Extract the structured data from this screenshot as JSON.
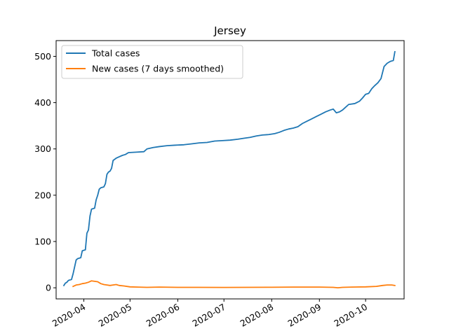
{
  "chart_data": {
    "type": "line",
    "title": "Jersey",
    "xlabel": "",
    "ylabel": "",
    "xlim": [
      "2020-03-14",
      "2020-10-26"
    ],
    "ylim": [
      -24,
      534
    ],
    "x_ticks": [
      "2020-04-01",
      "2020-05-01",
      "2020-06-01",
      "2020-07-01",
      "2020-08-01",
      "2020-09-01",
      "2020-10-01"
    ],
    "x_tick_labels": [
      "2020-04",
      "2020-05",
      "2020-06",
      "2020-07",
      "2020-08",
      "2020-09",
      "2020-10"
    ],
    "y_ticks": [
      0,
      100,
      200,
      300,
      400,
      500
    ],
    "y_tick_labels": [
      "0",
      "100",
      "200",
      "300",
      "400",
      "500"
    ],
    "legend": {
      "position": "upper-left"
    },
    "grid": false,
    "series": [
      {
        "name": "Total cases",
        "color": "#1f77b4",
        "points": [
          [
            "2020-03-19",
            5
          ],
          [
            "2020-03-20",
            10
          ],
          [
            "2020-03-21",
            12
          ],
          [
            "2020-03-22",
            16
          ],
          [
            "2020-03-24",
            18
          ],
          [
            "2020-03-25",
            30
          ],
          [
            "2020-03-26",
            45
          ],
          [
            "2020-03-27",
            60
          ],
          [
            "2020-03-28",
            63
          ],
          [
            "2020-03-30",
            65
          ],
          [
            "2020-03-31",
            80
          ],
          [
            "2020-04-02",
            82
          ],
          [
            "2020-04-03",
            118
          ],
          [
            "2020-04-04",
            125
          ],
          [
            "2020-04-05",
            155
          ],
          [
            "2020-04-06",
            170
          ],
          [
            "2020-04-08",
            172
          ],
          [
            "2020-04-09",
            190
          ],
          [
            "2020-04-10",
            200
          ],
          [
            "2020-04-11",
            213
          ],
          [
            "2020-04-12",
            216
          ],
          [
            "2020-04-14",
            218
          ],
          [
            "2020-04-15",
            225
          ],
          [
            "2020-04-16",
            245
          ],
          [
            "2020-04-17",
            250
          ],
          [
            "2020-04-18",
            252
          ],
          [
            "2020-04-19",
            258
          ],
          [
            "2020-04-20",
            275
          ],
          [
            "2020-04-22",
            280
          ],
          [
            "2020-04-24",
            283
          ],
          [
            "2020-04-26",
            286
          ],
          [
            "2020-04-28",
            288
          ],
          [
            "2020-04-30",
            292
          ],
          [
            "2020-05-05",
            293
          ],
          [
            "2020-05-10",
            294
          ],
          [
            "2020-05-12",
            300
          ],
          [
            "2020-05-16",
            303
          ],
          [
            "2020-05-20",
            305
          ],
          [
            "2020-05-25",
            307
          ],
          [
            "2020-05-30",
            308
          ],
          [
            "2020-06-05",
            309
          ],
          [
            "2020-06-10",
            311
          ],
          [
            "2020-06-15",
            313
          ],
          [
            "2020-06-20",
            314
          ],
          [
            "2020-06-25",
            317
          ],
          [
            "2020-06-30",
            318
          ],
          [
            "2020-07-05",
            319
          ],
          [
            "2020-07-10",
            321
          ],
          [
            "2020-07-14",
            323
          ],
          [
            "2020-07-18",
            325
          ],
          [
            "2020-07-22",
            328
          ],
          [
            "2020-07-26",
            330
          ],
          [
            "2020-07-30",
            331
          ],
          [
            "2020-08-03",
            333
          ],
          [
            "2020-08-06",
            336
          ],
          [
            "2020-08-09",
            340
          ],
          [
            "2020-08-12",
            343
          ],
          [
            "2020-08-15",
            345
          ],
          [
            "2020-08-18",
            348
          ],
          [
            "2020-08-21",
            355
          ],
          [
            "2020-08-24",
            360
          ],
          [
            "2020-08-27",
            365
          ],
          [
            "2020-08-30",
            370
          ],
          [
            "2020-09-02",
            375
          ],
          [
            "2020-09-05",
            380
          ],
          [
            "2020-09-08",
            384
          ],
          [
            "2020-09-10",
            386
          ],
          [
            "2020-09-12",
            378
          ],
          [
            "2020-09-14",
            380
          ],
          [
            "2020-09-16",
            384
          ],
          [
            "2020-09-18",
            390
          ],
          [
            "2020-09-20",
            396
          ],
          [
            "2020-09-24",
            398
          ],
          [
            "2020-09-27",
            403
          ],
          [
            "2020-09-29",
            410
          ],
          [
            "2020-10-01",
            418
          ],
          [
            "2020-10-03",
            420
          ],
          [
            "2020-10-05",
            430
          ],
          [
            "2020-10-07",
            437
          ],
          [
            "2020-10-09",
            443
          ],
          [
            "2020-10-11",
            452
          ],
          [
            "2020-10-13",
            478
          ],
          [
            "2020-10-15",
            485
          ],
          [
            "2020-10-17",
            489
          ],
          [
            "2020-10-19",
            491
          ],
          [
            "2020-10-20",
            510
          ]
        ]
      },
      {
        "name": "New cases (7 days smoothed)",
        "color": "#ff7f0e",
        "points": [
          [
            "2020-03-25",
            3
          ],
          [
            "2020-03-27",
            6
          ],
          [
            "2020-03-29",
            7
          ],
          [
            "2020-03-31",
            9
          ],
          [
            "2020-04-02",
            10
          ],
          [
            "2020-04-04",
            12
          ],
          [
            "2020-04-06",
            15
          ],
          [
            "2020-04-08",
            14
          ],
          [
            "2020-04-10",
            13
          ],
          [
            "2020-04-12",
            9
          ],
          [
            "2020-04-14",
            7
          ],
          [
            "2020-04-16",
            6
          ],
          [
            "2020-04-18",
            5
          ],
          [
            "2020-04-20",
            6
          ],
          [
            "2020-04-22",
            7
          ],
          [
            "2020-04-24",
            5
          ],
          [
            "2020-04-27",
            4
          ],
          [
            "2020-05-01",
            2
          ],
          [
            "2020-05-06",
            1.5
          ],
          [
            "2020-05-12",
            1
          ],
          [
            "2020-05-20",
            1.5
          ],
          [
            "2020-06-01",
            1
          ],
          [
            "2020-06-15",
            1
          ],
          [
            "2020-07-01",
            0.8
          ],
          [
            "2020-07-15",
            1
          ],
          [
            "2020-08-01",
            1.2
          ],
          [
            "2020-08-15",
            1.5
          ],
          [
            "2020-09-01",
            1.5
          ],
          [
            "2020-09-10",
            1
          ],
          [
            "2020-09-13",
            0
          ],
          [
            "2020-09-16",
            1
          ],
          [
            "2020-09-22",
            1.5
          ],
          [
            "2020-10-01",
            2
          ],
          [
            "2020-10-08",
            3
          ],
          [
            "2020-10-12",
            5
          ],
          [
            "2020-10-15",
            6
          ],
          [
            "2020-10-18",
            6
          ],
          [
            "2020-10-20",
            5
          ]
        ]
      }
    ]
  }
}
